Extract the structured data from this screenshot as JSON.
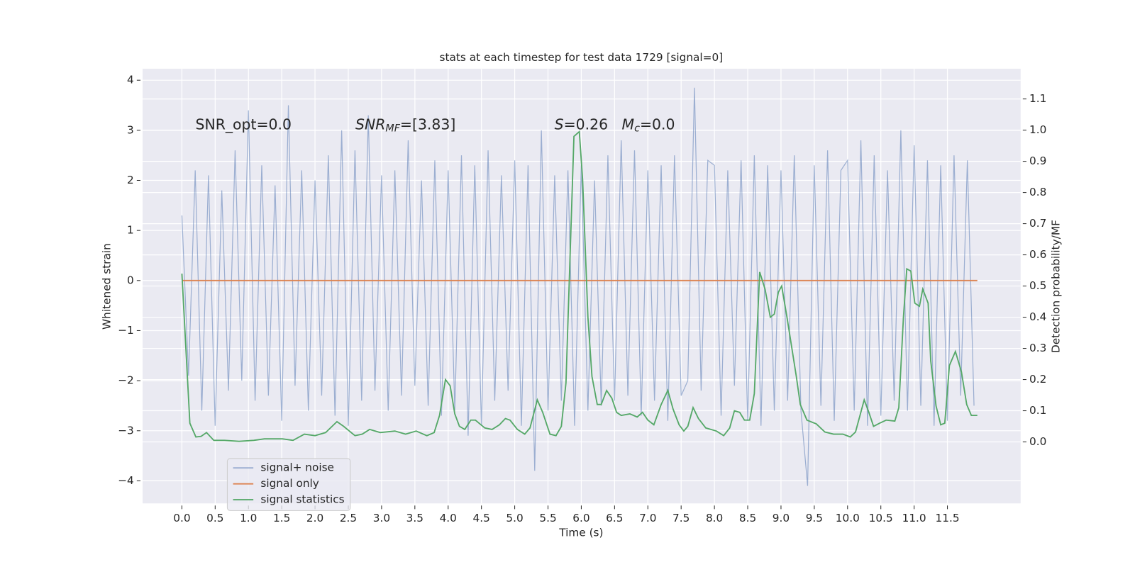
{
  "chart_data": {
    "type": "line",
    "title": "stats at each timestep for test data 1729 [signal=0]",
    "x_label": "Time (s)",
    "y_label": "Whitened strain",
    "y2_label": "Detection probability/MF",
    "annotations": [
      [
        {
          "text": "SNR_opt=0.0",
          "style": "normal"
        }
      ],
      [
        {
          "text": "SNR",
          "style": "italic"
        },
        {
          "text": "MF",
          "style": "italic-sub"
        },
        {
          "text": "=[3.83]",
          "style": "normal"
        }
      ],
      [
        {
          "text": "S",
          "style": "italic"
        },
        {
          "text": "=0.26   ",
          "style": "normal"
        },
        {
          "text": "M",
          "style": "italic"
        },
        {
          "text": "c",
          "style": "italic-sub"
        },
        {
          "text": "=0.0",
          "style": "normal"
        }
      ]
    ],
    "xlim": [
      -0.59,
      12.6
    ],
    "ylim": [
      -4.45,
      4.23
    ],
    "y2lim": [
      -0.197,
      1.197
    ],
    "xticks": [
      {
        "value": 0,
        "label": "0.0"
      },
      {
        "value": 0.5,
        "label": "0.5"
      },
      {
        "value": 1,
        "label": "1.0"
      },
      {
        "value": 1.5,
        "label": "1.5"
      },
      {
        "value": 2,
        "label": "2.0"
      },
      {
        "value": 2.5,
        "label": "2.5"
      },
      {
        "value": 3,
        "label": "3.0"
      },
      {
        "value": 3.5,
        "label": "3.5"
      },
      {
        "value": 4,
        "label": "4.0"
      },
      {
        "value": 4.5,
        "label": "4.5"
      },
      {
        "value": 5,
        "label": "5.0"
      },
      {
        "value": 5.5,
        "label": "5.5"
      },
      {
        "value": 6,
        "label": "6.0"
      },
      {
        "value": 6.5,
        "label": "6.5"
      },
      {
        "value": 7,
        "label": "7.0"
      },
      {
        "value": 7.5,
        "label": "7.5"
      },
      {
        "value": 8,
        "label": "8.0"
      },
      {
        "value": 8.5,
        "label": "8.5"
      },
      {
        "value": 9,
        "label": "9.0"
      },
      {
        "value": 9.5,
        "label": "9.5"
      },
      {
        "value": 10,
        "label": "10.0"
      },
      {
        "value": 10.5,
        "label": "10.5"
      },
      {
        "value": 11,
        "label": "11.0"
      },
      {
        "value": 11.5,
        "label": "11.5"
      }
    ],
    "yticks": [
      {
        "value": -4,
        "label": "−4"
      },
      {
        "value": -3,
        "label": "−3"
      },
      {
        "value": -2,
        "label": "−2"
      },
      {
        "value": -1,
        "label": "−1"
      },
      0,
      1,
      2,
      3,
      4
    ],
    "y2ticks": [
      {
        "value": 0,
        "label": "0.0"
      },
      {
        "value": 0.1,
        "label": "0.1"
      },
      {
        "value": 0.2,
        "label": "0.2"
      },
      {
        "value": 0.3,
        "label": "0.3"
      },
      {
        "value": 0.4,
        "label": "0.4"
      },
      {
        "value": 0.5,
        "label": "0.5"
      },
      {
        "value": 0.6,
        "label": "0.6"
      },
      {
        "value": 0.7,
        "label": "0.7"
      },
      {
        "value": 0.8,
        "label": "0.8"
      },
      {
        "value": 0.9,
        "label": "0.9"
      },
      {
        "value": 1,
        "label": "1.0"
      },
      {
        "value": 1.1,
        "label": "1.1"
      }
    ],
    "grid": true,
    "legend": "lower left",
    "series": [
      {
        "name": "signal+ noise",
        "color": "#4c72b0",
        "alpha": 0.5,
        "x": [
          0,
          0.1,
          0.2,
          0.3,
          0.4,
          0.5,
          0.6,
          0.7,
          0.8,
          0.9,
          1,
          1.1,
          1.2,
          1.3,
          1.4,
          1.5,
          1.6,
          1.7,
          1.8,
          1.9,
          2,
          2.1,
          2.2,
          2.3,
          2.4,
          2.5,
          2.6,
          2.7,
          2.8,
          2.9,
          3,
          3.1,
          3.2,
          3.3,
          3.4,
          3.5,
          3.6,
          3.7,
          3.8,
          3.9,
          4,
          4.1,
          4.2,
          4.3,
          4.4,
          4.5,
          4.6,
          4.7,
          4.8,
          4.9,
          5,
          5.1,
          5.2,
          5.3,
          5.4,
          5.5,
          5.6,
          5.7,
          5.8,
          5.9,
          6,
          6.1,
          6.2,
          6.3,
          6.4,
          6.5,
          6.6,
          6.7,
          6.8,
          6.9,
          7,
          7.1,
          7.2,
          7.3,
          7.4,
          7.5,
          7.6,
          7.7,
          7.8,
          7.9,
          8,
          8.1,
          8.2,
          8.3,
          8.4,
          8.5,
          8.6,
          8.7,
          8.8,
          8.9,
          9,
          9.1,
          9.2,
          9.3,
          9.4,
          9.5,
          9.6,
          9.7,
          9.8,
          9.9,
          10,
          10.1,
          10.2,
          10.3,
          10.4,
          10.5,
          10.6,
          10.7,
          10.8,
          10.9,
          11,
          11.1,
          11.2,
          11.3,
          11.4,
          11.5,
          11.6,
          11.7,
          11.8,
          11.9
        ],
        "values": [
          1.3,
          -1.9,
          2.2,
          -2.6,
          2.1,
          -2.9,
          1.8,
          -2.2,
          2.6,
          -2.0,
          3.4,
          -2.4,
          2.3,
          -2.3,
          1.9,
          -2.8,
          3.5,
          -2.1,
          2.2,
          -2.6,
          2.0,
          -2.3,
          2.5,
          -2.7,
          3.0,
          -2.9,
          2.6,
          -2.4,
          3.3,
          -2.2,
          2.1,
          -2.6,
          2.2,
          -2.3,
          2.8,
          -2.1,
          2.0,
          -2.5,
          2.4,
          -2.7,
          2.2,
          -2.6,
          2.5,
          -3.1,
          2.3,
          -2.9,
          2.6,
          -2.4,
          2.1,
          -2.2,
          2.4,
          -2.9,
          2.3,
          -3.8,
          3.0,
          -2.6,
          2.1,
          -2.4,
          2.2,
          -2.9,
          2.3,
          -2.6,
          2.0,
          -2.5,
          2.5,
          -2.4,
          2.8,
          -2.3,
          2.6,
          -2.7,
          2.2,
          -2.4,
          2.3,
          -2.8,
          2.5,
          -2.3,
          -2.0,
          3.85,
          -2.2,
          2.4,
          2.3,
          -2.7,
          2.2,
          -2.1,
          2.4,
          -2.8,
          2.5,
          -2.9,
          2.3,
          -2.6,
          2.2,
          -2.4,
          2.5,
          -2.6,
          -4.1,
          2.3,
          -2.5,
          2.6,
          -2.8,
          2.2,
          2.4,
          -2.6,
          2.8,
          -2.9,
          2.5,
          -2.7,
          2.2,
          -2.4,
          3.0,
          -2.6,
          2.7,
          -2.5,
          2.4,
          -2.9,
          2.3,
          -2.8,
          2.5,
          -2.3,
          2.4,
          -2.5
        ]
      },
      {
        "name": "signal only",
        "color": "#dd8452",
        "x": [
          0,
          11.95
        ],
        "values": [
          0,
          0
        ]
      },
      {
        "name": "signal statistics",
        "color": "#55a868",
        "axis": "y2",
        "x": [
          0,
          0.12,
          0.21,
          0.29,
          0.37,
          0.48,
          0.64,
          0.86,
          1.08,
          1.24,
          1.51,
          1.67,
          1.84,
          2.0,
          2.16,
          2.33,
          2.43,
          2.6,
          2.71,
          2.82,
          2.98,
          3.2,
          3.36,
          3.52,
          3.68,
          3.79,
          3.87,
          3.96,
          4.03,
          4.1,
          4.17,
          4.25,
          4.34,
          4.41,
          4.55,
          4.66,
          4.77,
          4.86,
          4.93,
          5.04,
          5.15,
          5.23,
          5.34,
          5.42,
          5.53,
          5.62,
          5.7,
          5.77,
          5.89,
          5.97,
          6.02,
          6.1,
          6.16,
          6.24,
          6.3,
          6.38,
          6.46,
          6.53,
          6.6,
          6.73,
          6.84,
          6.92,
          7.0,
          7.09,
          7.2,
          7.3,
          7.38,
          7.47,
          7.54,
          7.6,
          7.68,
          7.76,
          7.87,
          8.03,
          8.14,
          8.23,
          8.3,
          8.38,
          8.45,
          8.53,
          8.6,
          8.68,
          8.76,
          8.84,
          8.9,
          8.96,
          9.01,
          9.09,
          9.23,
          9.29,
          9.39,
          9.53,
          9.66,
          9.79,
          9.93,
          10.04,
          10.12,
          10.25,
          10.32,
          10.39,
          10.48,
          10.58,
          10.71,
          10.77,
          10.84,
          10.89,
          10.95,
          11.01,
          11.08,
          11.13,
          11.21,
          11.25,
          11.33,
          11.4,
          11.46,
          11.53,
          11.62,
          11.71,
          11.79,
          11.86,
          11.95
        ],
        "values": [
          0.54,
          0.06,
          0.016,
          0.018,
          0.03,
          0.005,
          0.005,
          0.002,
          0.005,
          0.01,
          0.01,
          0.005,
          0.025,
          0.02,
          0.03,
          0.065,
          0.05,
          0.02,
          0.025,
          0.04,
          0.03,
          0.035,
          0.025,
          0.035,
          0.02,
          0.03,
          0.085,
          0.2,
          0.18,
          0.09,
          0.05,
          0.04,
          0.07,
          0.07,
          0.045,
          0.04,
          0.055,
          0.075,
          0.07,
          0.04,
          0.025,
          0.045,
          0.135,
          0.095,
          0.025,
          0.02,
          0.05,
          0.19,
          0.98,
          0.995,
          0.84,
          0.4,
          0.21,
          0.12,
          0.12,
          0.165,
          0.14,
          0.095,
          0.085,
          0.09,
          0.08,
          0.095,
          0.07,
          0.055,
          0.12,
          0.165,
          0.105,
          0.055,
          0.035,
          0.05,
          0.11,
          0.075,
          0.045,
          0.035,
          0.02,
          0.045,
          0.1,
          0.095,
          0.07,
          0.07,
          0.155,
          0.545,
          0.49,
          0.4,
          0.41,
          0.48,
          0.5,
          0.4,
          0.21,
          0.12,
          0.07,
          0.058,
          0.032,
          0.025,
          0.025,
          0.016,
          0.032,
          0.135,
          0.095,
          0.05,
          0.06,
          0.07,
          0.067,
          0.11,
          0.4,
          0.555,
          0.548,
          0.445,
          0.435,
          0.49,
          0.445,
          0.26,
          0.115,
          0.055,
          0.06,
          0.245,
          0.29,
          0.225,
          0.12,
          0.085,
          0.085
        ]
      }
    ]
  }
}
